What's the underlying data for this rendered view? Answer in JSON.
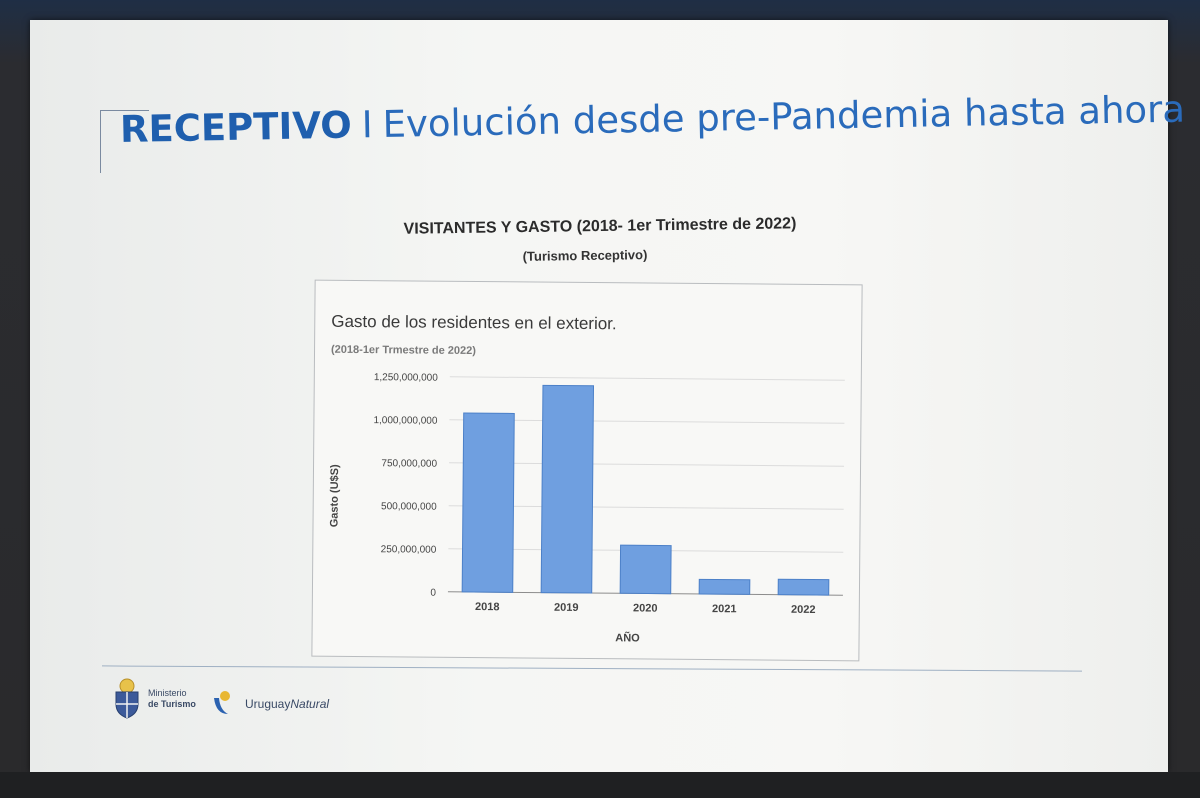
{
  "slide": {
    "title_strong": "RECEPTIVO",
    "title_sep": "I",
    "title_rest": "Evolución desde pre-Pandemia hasta ahora",
    "heading": "VISITANTES Y GASTO (2018- 1er Trimestre de 2022)",
    "subheading": "(Turismo Receptivo)"
  },
  "chart_data": {
    "type": "bar",
    "title": "Gasto de los residentes en el exterior.",
    "subtitle": "(2018-1er Trmestre de 2022)",
    "xlabel": "AÑO",
    "ylabel": "Gasto (U$S)",
    "categories": [
      "2018",
      "2019",
      "2020",
      "2021",
      "2022"
    ],
    "values": [
      1040000000,
      1205000000,
      280000000,
      85000000,
      90000000
    ],
    "ylim": [
      0,
      1250000000
    ],
    "yticks": [
      0,
      250000000,
      500000000,
      750000000,
      1000000000,
      1250000000
    ],
    "ytick_labels": [
      "0",
      "250,000,000",
      "500,000,000",
      "750,000,000",
      "1,000,000,000",
      "1,250,000,000"
    ],
    "grid": true,
    "bar_color": "#6f9fe0",
    "bar_edge": "#4c80c8"
  },
  "footer": {
    "ministry_line1": "Ministerio",
    "ministry_line2": "de Turismo",
    "brand_a": "Uruguay",
    "brand_b": "Natural"
  }
}
